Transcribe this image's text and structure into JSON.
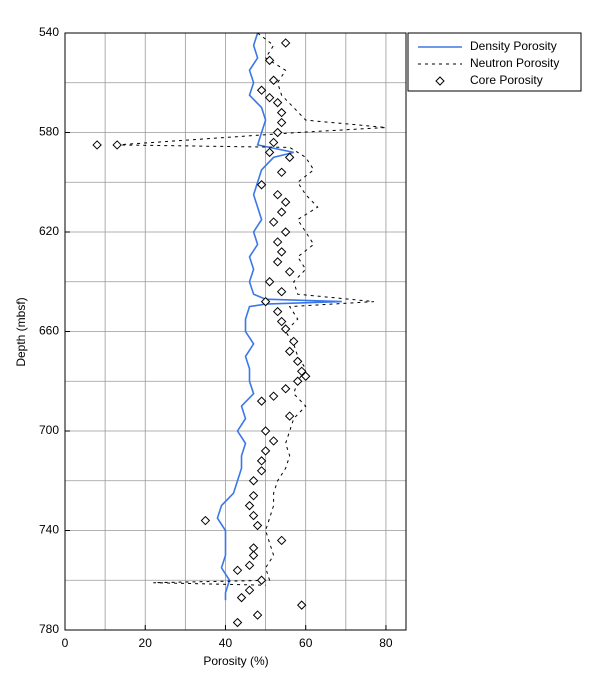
{
  "chart_data": {
    "type": "line",
    "xlabel": "Porosity (%)",
    "ylabel": "Depth (mbsf)",
    "xlim": [
      0,
      85
    ],
    "ylim": [
      780,
      540
    ],
    "xticks": [
      0,
      20,
      40,
      60,
      80
    ],
    "yticks": [
      540,
      580,
      620,
      660,
      700,
      740,
      780
    ],
    "xgrid": [
      10,
      30,
      50,
      70
    ],
    "ygrid": [
      560,
      600,
      640,
      680,
      720,
      760
    ],
    "grid": true,
    "legend": "outside-top-right",
    "series": [
      {
        "name": "Density Porosity",
        "type": "line",
        "color": "#3b78e7",
        "depth": [
          540,
          545,
          550,
          555,
          560,
          565,
          570,
          575,
          580,
          585,
          588,
          590,
          595,
          600,
          605,
          610,
          615,
          620,
          625,
          630,
          635,
          640,
          645,
          647,
          648,
          649,
          650,
          655,
          660,
          665,
          670,
          675,
          680,
          685,
          690,
          695,
          700,
          705,
          710,
          715,
          720,
          725,
          730,
          735,
          740,
          745,
          750,
          755,
          760,
          765,
          768
        ],
        "values": [
          48,
          47,
          48,
          46,
          47,
          46,
          49,
          50,
          49,
          48,
          57,
          52,
          49,
          48,
          47,
          48,
          49,
          47,
          48,
          46,
          47,
          46,
          47,
          50,
          69,
          50,
          46,
          45,
          45,
          47,
          45,
          46,
          46,
          47,
          44,
          45,
          43,
          45,
          44,
          44,
          43,
          42,
          39,
          38,
          40,
          40,
          40,
          39,
          41,
          40,
          40
        ]
      },
      {
        "name": "Neutron Porosity",
        "type": "line",
        "color": "#000000",
        "depth": [
          540,
          545,
          550,
          555,
          560,
          565,
          570,
          575,
          578,
          580,
          585,
          586,
          590,
          595,
          600,
          605,
          610,
          615,
          620,
          625,
          630,
          635,
          640,
          645,
          648,
          650,
          655,
          660,
          665,
          670,
          675,
          680,
          685,
          690,
          695,
          700,
          705,
          710,
          715,
          720,
          725,
          730,
          735,
          740,
          745,
          750,
          755,
          760,
          761,
          762
        ],
        "values": [
          48,
          52,
          50,
          55,
          53,
          54,
          57,
          60,
          80,
          58,
          13,
          56,
          60,
          62,
          58,
          60,
          63,
          58,
          60,
          62,
          58,
          60,
          57,
          58,
          77,
          56,
          58,
          55,
          57,
          58,
          60,
          58,
          57,
          60,
          57,
          56,
          55,
          56,
          55,
          53,
          52,
          52,
          51,
          50,
          51,
          52,
          50,
          51,
          22,
          50
        ]
      },
      {
        "name": "Core Porosity",
        "type": "scatter",
        "color": "#000000",
        "depth": [
          544,
          551,
          559,
          563,
          566,
          568,
          572,
          576,
          580,
          584,
          585,
          585,
          588,
          590,
          596,
          601,
          605,
          608,
          612,
          616,
          620,
          624,
          628,
          632,
          636,
          640,
          644,
          648,
          652,
          656,
          659,
          664,
          668,
          672,
          676,
          678,
          680,
          683,
          686,
          688,
          694,
          700,
          704,
          708,
          712,
          716,
          720,
          726,
          730,
          734,
          736,
          738,
          744,
          747,
          750,
          754,
          756,
          760,
          764,
          767,
          770,
          774,
          777
        ],
        "values": [
          55,
          51,
          52,
          49,
          51,
          53,
          54,
          54,
          53,
          52,
          8,
          13,
          51,
          56,
          54,
          49,
          53,
          55,
          54,
          52,
          55,
          53,
          54,
          53,
          56,
          51,
          54,
          50,
          53,
          54,
          55,
          57,
          56,
          58,
          59,
          60,
          58,
          55,
          52,
          49,
          56,
          50,
          52,
          50,
          49,
          49,
          47,
          47,
          46,
          47,
          35,
          48,
          54,
          47,
          47,
          46,
          43,
          49,
          46,
          44,
          59,
          48,
          43
        ]
      }
    ]
  }
}
